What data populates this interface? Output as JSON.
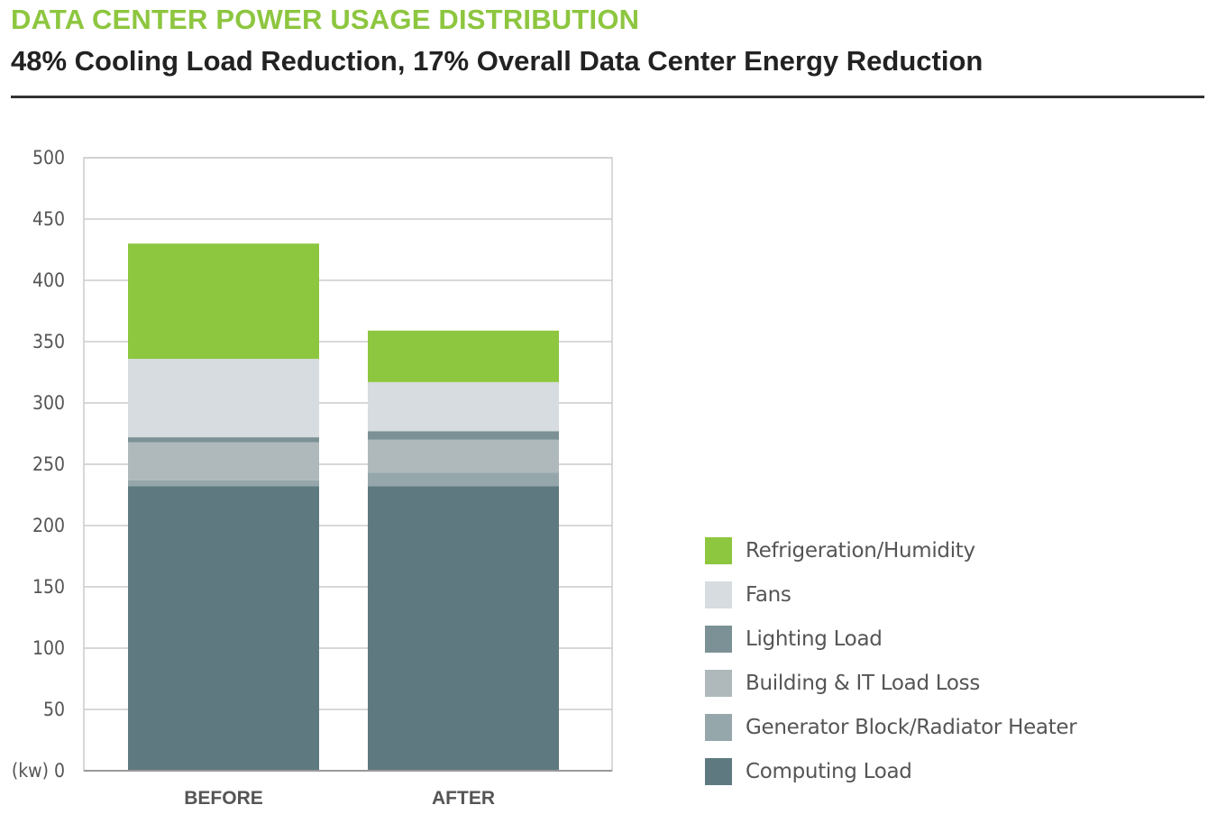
{
  "header": {
    "title": "DATA CENTER POWER USAGE DISTRIBUTION",
    "subtitle": "48% Cooling Load Reduction, 17% Overall Data Center Energy Reduction"
  },
  "colors": {
    "title": "#8dc63f",
    "subtitle": "#222222",
    "rule": "#333333",
    "grid": "#cccccc",
    "text": "#555555"
  },
  "chart_data": {
    "type": "bar",
    "stacked": true,
    "title": "DATA CENTER POWER USAGE DISTRIBUTION",
    "subtitle": "48% Cooling Load Reduction, 17% Overall Data Center Energy Reduction",
    "ylabel": "(kw)",
    "xlabel": "",
    "ylim": [
      0,
      500
    ],
    "yticks": [
      0,
      50,
      100,
      150,
      200,
      250,
      300,
      350,
      400,
      450,
      500
    ],
    "ytick_labels": [
      "(kw) 0",
      "50",
      "100",
      "150",
      "200",
      "250",
      "300",
      "350",
      "400",
      "450",
      "500"
    ],
    "grid": true,
    "legend_position": "right",
    "categories": [
      "BEFORE",
      "AFTER"
    ],
    "series": [
      {
        "name": "Computing Load",
        "color": "#5e7a80",
        "values": [
          232,
          232
        ]
      },
      {
        "name": "Generator Block/Radiator Heater",
        "color": "#96a7ab",
        "values": [
          5,
          11
        ]
      },
      {
        "name": "Building & IT Load Loss",
        "color": "#afb9bc",
        "values": [
          31,
          27
        ]
      },
      {
        "name": "Lighting Load",
        "color": "#7c9196",
        "values": [
          4,
          7
        ]
      },
      {
        "name": "Fans",
        "color": "#d6dcdf",
        "values": [
          64,
          40
        ]
      },
      {
        "name": "Refrigeration/Humidity",
        "color": "#8dc63f",
        "values": [
          94,
          42
        ]
      }
    ]
  },
  "legend": {
    "items": [
      {
        "label": "Refrigeration/Humidity",
        "color": "#8dc63f"
      },
      {
        "label": "Fans",
        "color": "#d6dcdf"
      },
      {
        "label": "Lighting Load",
        "color": "#7c9196"
      },
      {
        "label": "Building & IT Load Loss",
        "color": "#afb9bc"
      },
      {
        "label": "Generator Block/Radiator Heater",
        "color": "#96a7ab"
      },
      {
        "label": "Computing Load",
        "color": "#5e7a80"
      }
    ]
  }
}
